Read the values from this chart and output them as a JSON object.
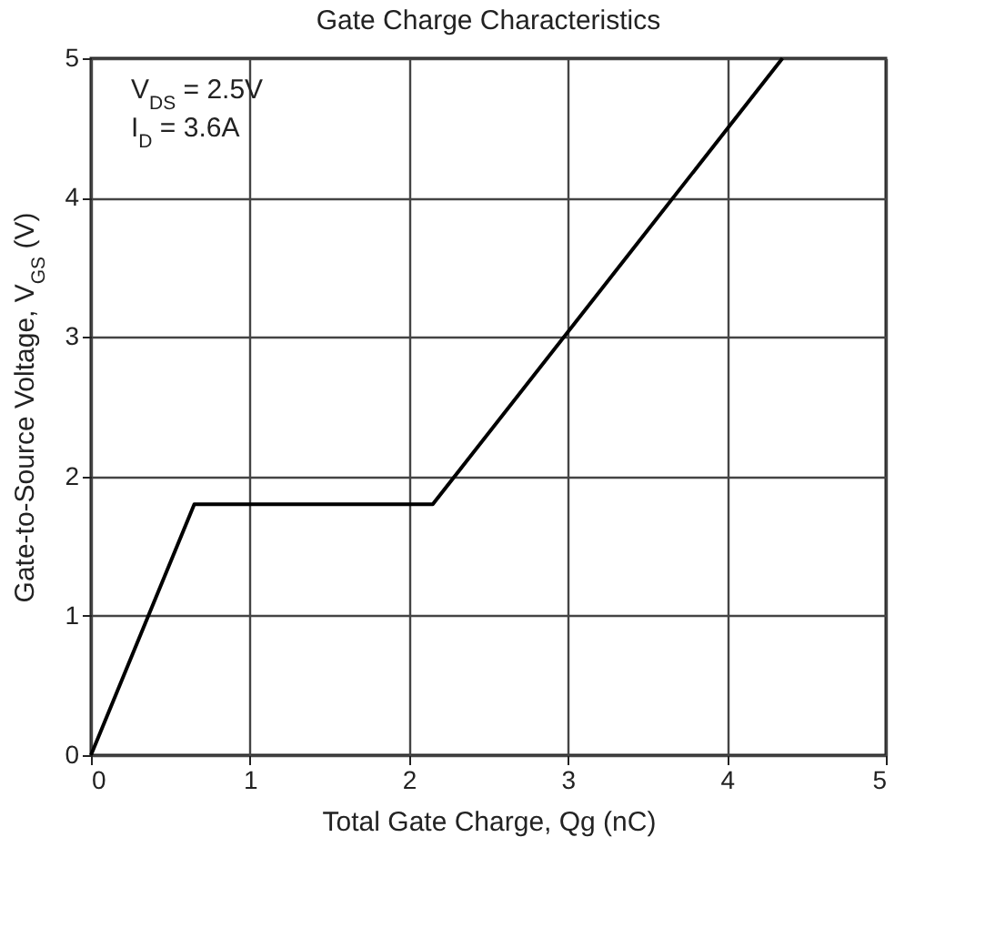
{
  "chart_data": {
    "type": "line",
    "title": "Gate Charge Characteristics",
    "xlabel": "Total Gate Charge, Qg (nC)",
    "ylabel": "Gate-to-Source Voltage, V$_{GS}$ (V)",
    "x": [
      0,
      0.65,
      2.15,
      4.35
    ],
    "series": [
      {
        "color": "#000000",
        "values": [
          0,
          1.8,
          1.8,
          5
        ]
      }
    ],
    "xlim": [
      0,
      5
    ],
    "xticks": [
      0,
      1,
      2,
      3,
      4,
      5
    ],
    "ylim": [
      0,
      5
    ],
    "yticks": [
      0,
      1,
      2,
      3,
      4,
      5
    ],
    "grid": true,
    "marker": "none",
    "line_style": "solid",
    "annotations": [
      "V$_{DS}$ = 2.5V",
      "I$_{D}$ = 3.6A"
    ]
  }
}
